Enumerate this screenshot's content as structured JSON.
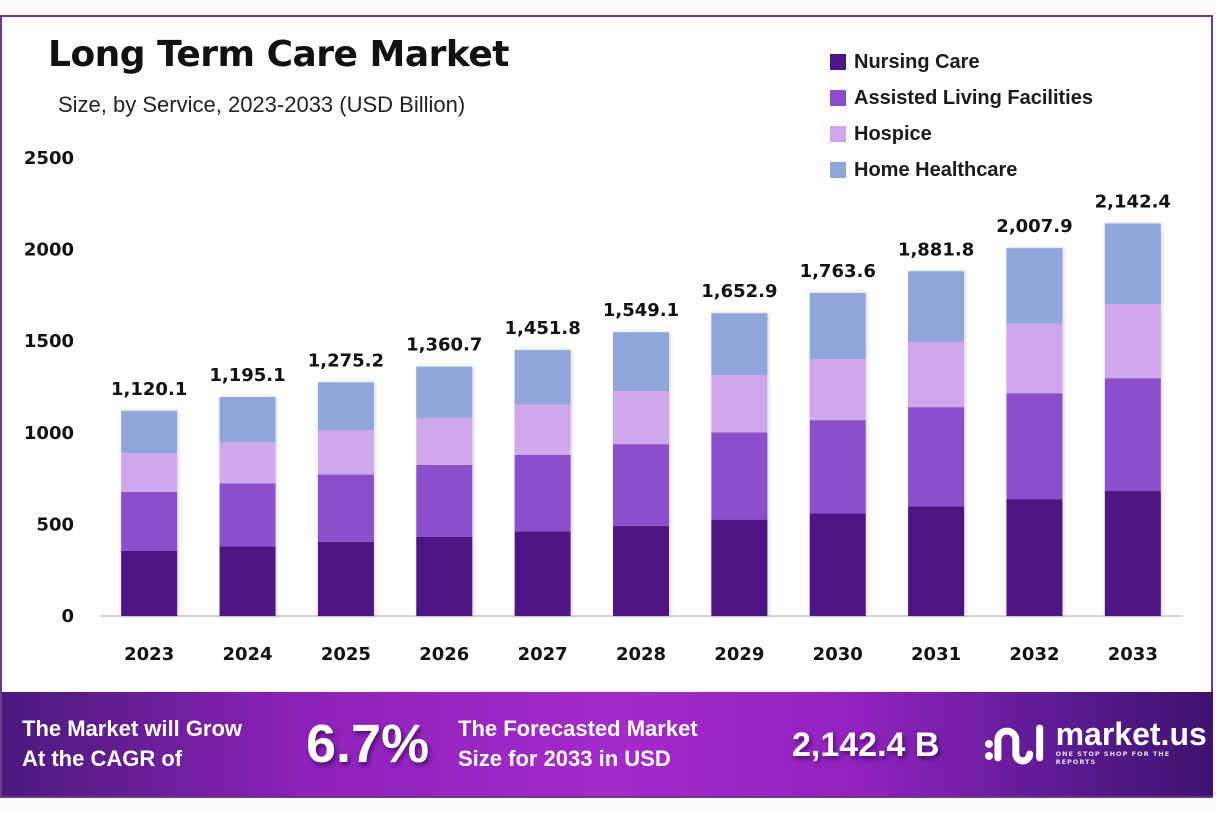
{
  "header": {
    "title": "Long Term Care Market",
    "subtitle": "Size, by Service, 2023-2033 (USD Billion)"
  },
  "legend": [
    {
      "label": "Nursing Care",
      "color": "#4e1584"
    },
    {
      "label": "Assisted Living Facilities",
      "color": "#8b4fcc"
    },
    {
      "label": "Hospice",
      "color": "#d0a7ea"
    },
    {
      "label": "Home Healthcare",
      "color": "#8ea6da"
    }
  ],
  "chart_data": {
    "type": "bar",
    "stacked": true,
    "title": "Long Term Care Market",
    "subtitle": "Size, by Service, 2023-2033 (USD Billion)",
    "xlabel": "",
    "ylabel": "",
    "ylim": [
      0,
      2500
    ],
    "yticks": [
      0,
      500,
      1000,
      1500,
      2000,
      2500
    ],
    "grid": false,
    "legend_position": "top-right",
    "categories": [
      "2023",
      "2024",
      "2025",
      "2026",
      "2027",
      "2028",
      "2029",
      "2030",
      "2031",
      "2032",
      "2033"
    ],
    "series": [
      {
        "name": "Nursing Care",
        "color": "#4e1584",
        "values": [
          355,
          380,
          405,
          433,
          462,
          491,
          526,
          561,
          598,
          638,
          682
        ]
      },
      {
        "name": "Assisted Living Facilities",
        "color": "#8b4fcc",
        "values": [
          322,
          344,
          367,
          392,
          418,
          447,
          476,
          508,
          542,
          578,
          616
        ]
      },
      {
        "name": "Hospice",
        "color": "#d0a7ea",
        "values": [
          213,
          226,
          241,
          257,
          274,
          289,
          312,
          333,
          356,
          380,
          404
        ]
      },
      {
        "name": "Home Healthcare",
        "color": "#8ea6da",
        "values": [
          230.1,
          245.1,
          262.2,
          278.7,
          297.8,
          322.1,
          338.9,
          361.6,
          385.8,
          411.9,
          440.4
        ]
      }
    ],
    "totals": [
      1120.1,
      1195.1,
      1275.2,
      1360.7,
      1451.8,
      1549.1,
      1652.9,
      1763.6,
      1881.8,
      2007.9,
      2142.4
    ],
    "total_labels": [
      "1,120.1",
      "1,195.1",
      "1,275.2",
      "1,360.7",
      "1,451.8",
      "1,549.1",
      "1,652.9",
      "1,763.6",
      "1,881.8",
      "2,007.9",
      "2,142.4"
    ]
  },
  "banner": {
    "cagr_text_line1": "The Market will Grow",
    "cagr_text_line2": "At the CAGR of",
    "cagr_value": "6.7%",
    "forecast_text_line1": "The Forecasted Market",
    "forecast_text_line2": "Size for 2033 in USD",
    "forecast_value": "2,142.4 B",
    "logo_name": "market.us",
    "logo_tagline": "ONE STOP SHOP FOR THE REPORTS"
  }
}
